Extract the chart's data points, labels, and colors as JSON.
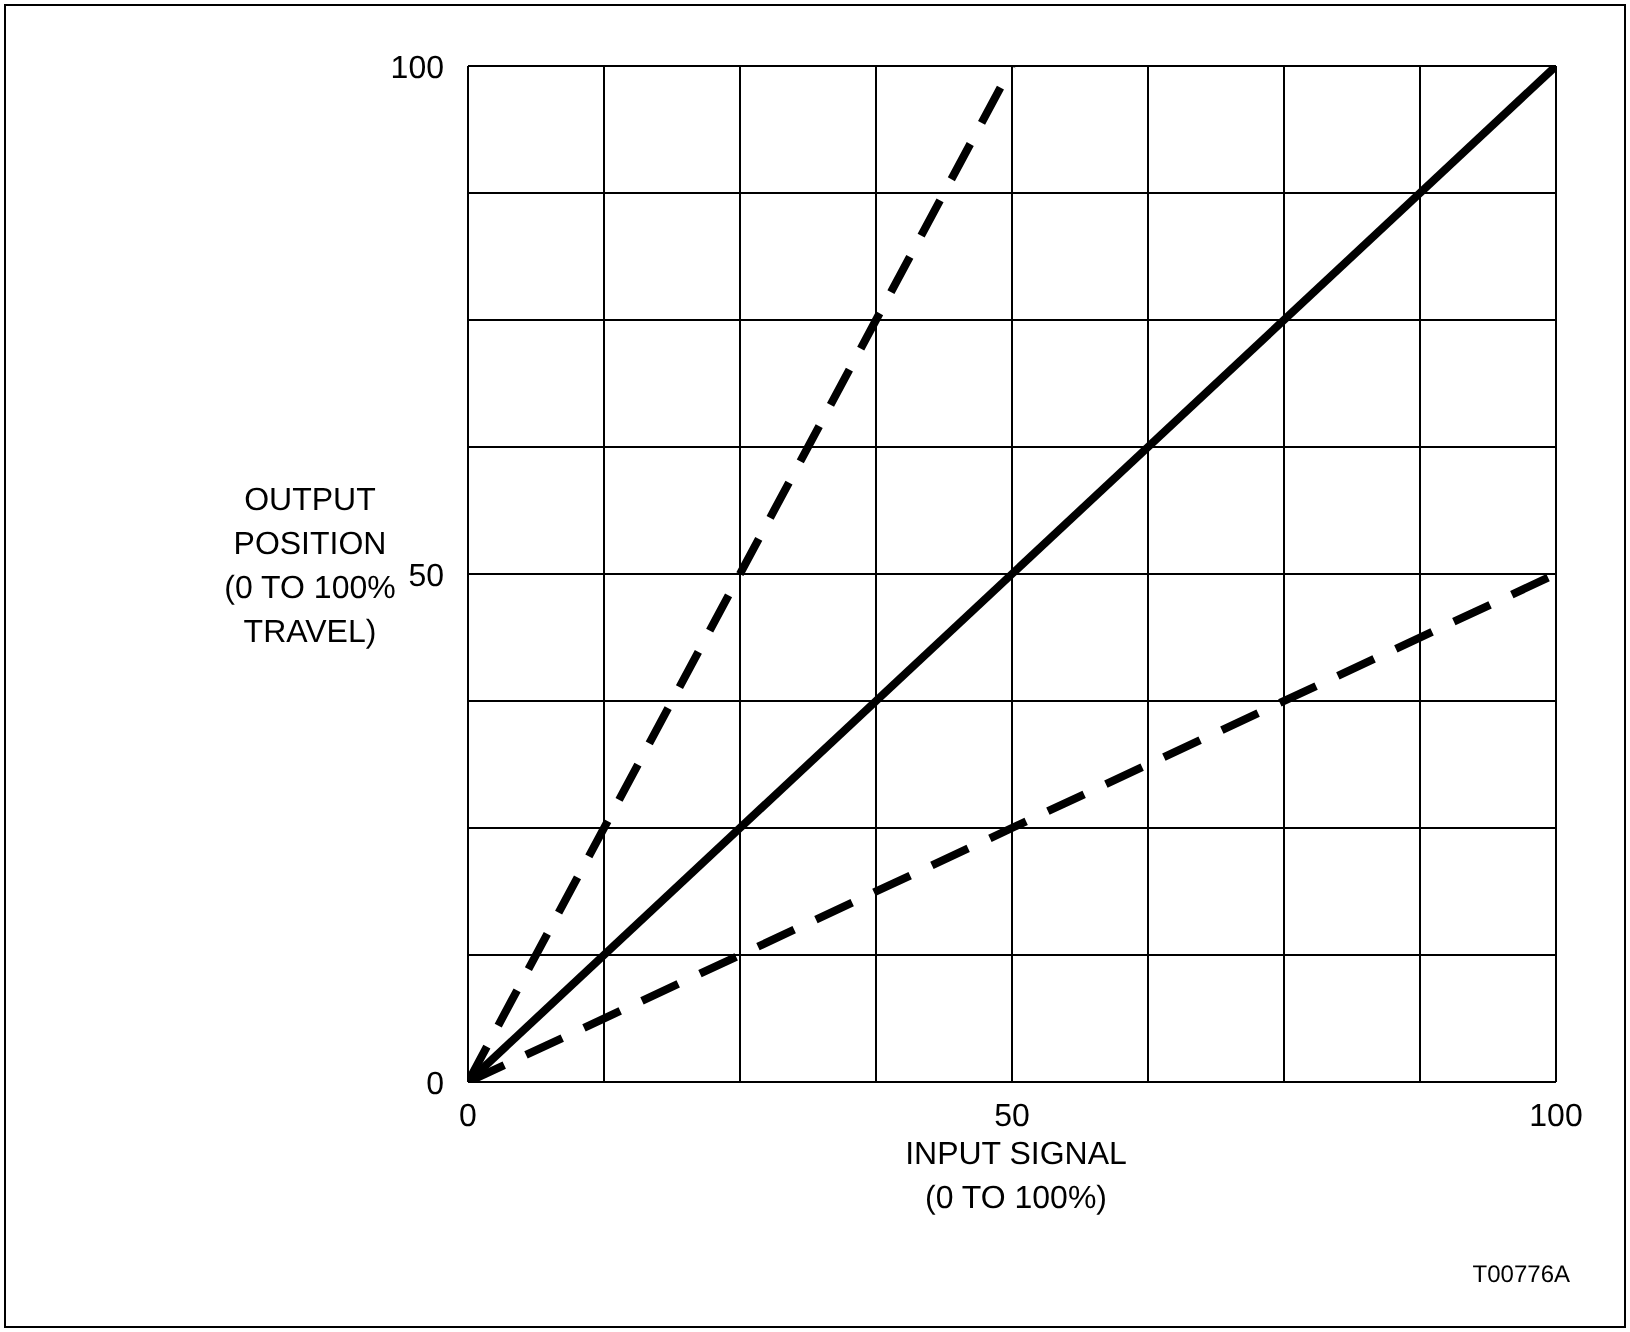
{
  "chart_data": {
    "type": "line",
    "xlabel": "INPUT SIGNAL (0 TO 100%)",
    "ylabel": "OUTPUT POSITION (0 TO 100% TRAVEL)",
    "annotations": [
      "T00776A"
    ],
    "xlim": [
      0,
      100
    ],
    "ylim": [
      0,
      100
    ],
    "xticks": [
      0,
      {
        "value": 12.5,
        "label": null
      },
      {
        "value": 25,
        "label": null
      },
      {
        "value": 37.5,
        "label": null
      },
      50,
      {
        "value": 62.5,
        "label": null
      },
      {
        "value": 75,
        "label": null
      },
      {
        "value": 87.5,
        "label": null
      },
      100
    ],
    "yticks": [
      0,
      {
        "value": 12.5,
        "label": null
      },
      {
        "value": 25,
        "label": null
      },
      {
        "value": 37.5,
        "label": null
      },
      50,
      {
        "value": 62.5,
        "label": null
      },
      {
        "value": 75,
        "label": null
      },
      {
        "value": 87.5,
        "label": null
      },
      100
    ],
    "grid": true,
    "marker": "none",
    "series": [
      {
        "color": "#000000",
        "line_style": "dashed",
        "x": [
          0,
          50
        ],
        "values": [
          0,
          100
        ]
      },
      {
        "color": "#000000",
        "line_style": "solid",
        "x": [
          0,
          100
        ],
        "values": [
          0,
          100
        ]
      },
      {
        "color": "#000000",
        "line_style": "dashed",
        "x": [
          0,
          100
        ],
        "values": [
          0,
          50
        ]
      }
    ]
  }
}
